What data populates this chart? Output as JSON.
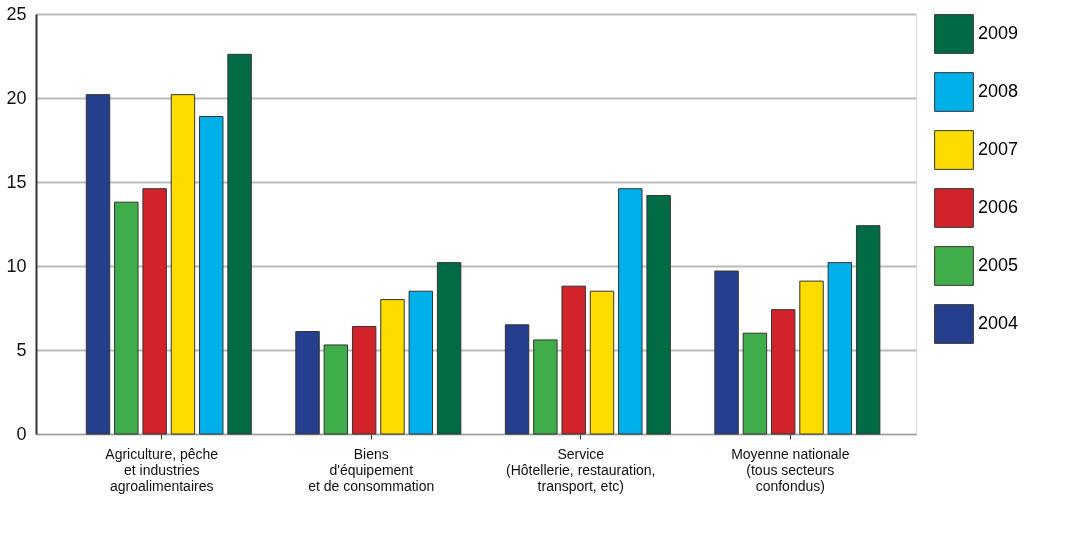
{
  "chart_data": {
    "type": "bar",
    "categories": [
      "Agriculture, pêche\net industries\nagroalimentaires",
      "Biens\nd'équipement\net de consommation",
      "Service\n(Hôtellerie, restauration,\ntransport, etc)",
      "Moyenne nationale\n(tous secteurs\nconfondus)"
    ],
    "series": [
      {
        "name": "2004",
        "color": "#253f8e",
        "values": [
          20.2,
          6.1,
          6.5,
          9.7
        ]
      },
      {
        "name": "2005",
        "color": "#3fae4a",
        "values": [
          13.8,
          5.3,
          5.6,
          6.0
        ]
      },
      {
        "name": "2006",
        "color": "#d2232a",
        "values": [
          14.6,
          6.4,
          8.8,
          7.4
        ]
      },
      {
        "name": "2007",
        "color": "#ffdc00",
        "values": [
          20.2,
          8.0,
          8.5,
          9.1
        ]
      },
      {
        "name": "2008",
        "color": "#00b0e8",
        "values": [
          18.9,
          8.5,
          14.6,
          10.2
        ]
      },
      {
        "name": "2009",
        "color": "#006b44",
        "values": [
          22.6,
          10.2,
          14.2,
          12.4
        ]
      }
    ],
    "ylim": [
      0,
      25
    ],
    "yticks": [
      0,
      5,
      10,
      15,
      20,
      25
    ],
    "grid": "y",
    "legend": "right"
  }
}
